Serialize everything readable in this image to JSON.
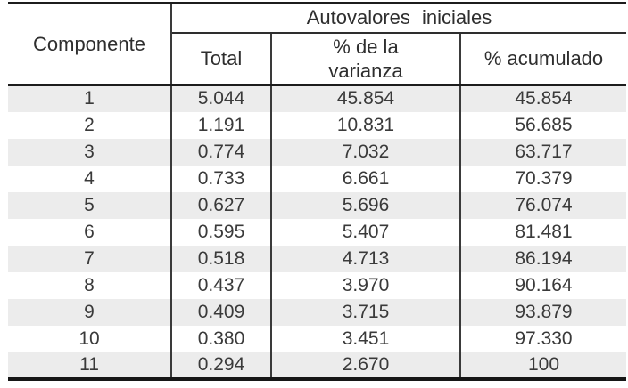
{
  "table": {
    "corner_header": "Componente",
    "group_header": "Autovalores iniciales",
    "columns": {
      "total": "Total",
      "variance": "% de la\nvarianza",
      "cumulative": "% acumulado"
    },
    "rows": [
      {
        "component": "1",
        "total": "5.044",
        "variance": "45.854",
        "cumulative": "45.854"
      },
      {
        "component": "2",
        "total": "1.191",
        "variance": "10.831",
        "cumulative": "56.685"
      },
      {
        "component": "3",
        "total": "0.774",
        "variance": "7.032",
        "cumulative": "63.717"
      },
      {
        "component": "4",
        "total": "0.733",
        "variance": "6.661",
        "cumulative": "70.379"
      },
      {
        "component": "5",
        "total": "0.627",
        "variance": "5.696",
        "cumulative": "76.074"
      },
      {
        "component": "6",
        "total": "0.595",
        "variance": "5.407",
        "cumulative": "81.481"
      },
      {
        "component": "7",
        "total": "0.518",
        "variance": "4.713",
        "cumulative": "86.194"
      },
      {
        "component": "8",
        "total": "0.437",
        "variance": "3.970",
        "cumulative": "90.164"
      },
      {
        "component": "9",
        "total": "0.409",
        "variance": "3.715",
        "cumulative": "93.879"
      },
      {
        "component": "10",
        "total": "0.380",
        "variance": "3.451",
        "cumulative": "97.330"
      },
      {
        "component": "11",
        "total": "0.294",
        "variance": "2.670",
        "cumulative": "100"
      }
    ]
  },
  "colors": {
    "row_stripe": "#ececec",
    "rule_thick": "#1c1c1c",
    "rule_thin": "#3a3a3a",
    "text": "#3a3a3a",
    "background": "#ffffff"
  }
}
